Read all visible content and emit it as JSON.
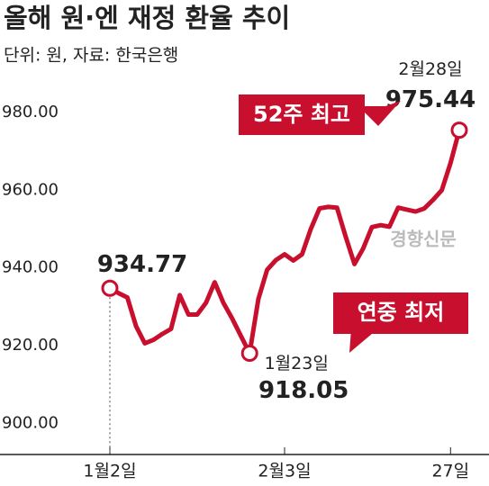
{
  "chart_data": {
    "type": "line",
    "title": "올해 원·엔 재정 환율 추이",
    "subtitle": "단위: 원, 자료: 한국은행",
    "watermark": "경향신문",
    "categories": [
      "1월2일",
      null,
      null,
      null,
      null,
      null,
      null,
      null,
      null,
      null,
      null,
      null,
      null,
      null,
      null,
      null,
      null,
      null,
      null,
      null,
      "2월3일",
      null,
      null,
      null,
      null,
      null,
      null,
      null,
      null,
      null,
      null,
      null,
      null,
      null,
      null,
      null,
      null,
      null,
      null,
      "27일",
      null
    ],
    "series": [
      {
        "name": "원·엔 재정 환율",
        "color": "#c8102e",
        "values": [
          934.77,
          933.5,
          932.4,
          925,
          920.6,
          921.5,
          923,
          924.3,
          933,
          928,
          928,
          931,
          936.3,
          931,
          927,
          922.5,
          918.05,
          932,
          939.5,
          942,
          943.5,
          941.9,
          943.5,
          950,
          955.3,
          955.7,
          955.5,
          948,
          941,
          945,
          950.5,
          951,
          950.6,
          955.5,
          955,
          954.5,
          955.3,
          957.5,
          960,
          967,
          975.44
        ]
      }
    ],
    "annotations": [
      "52주 최고",
      "연중 최저",
      "1월23일",
      "2월28일"
    ],
    "ylim": [
      892,
      986
    ],
    "yticks": [
      {
        "value": 900,
        "label": "900.00"
      },
      {
        "value": 920,
        "label": "920.00"
      },
      {
        "value": 940,
        "label": "940.00"
      },
      {
        "value": 960,
        "label": "960.00"
      },
      {
        "value": 980,
        "label": "980.00"
      }
    ],
    "grid": false
  }
}
